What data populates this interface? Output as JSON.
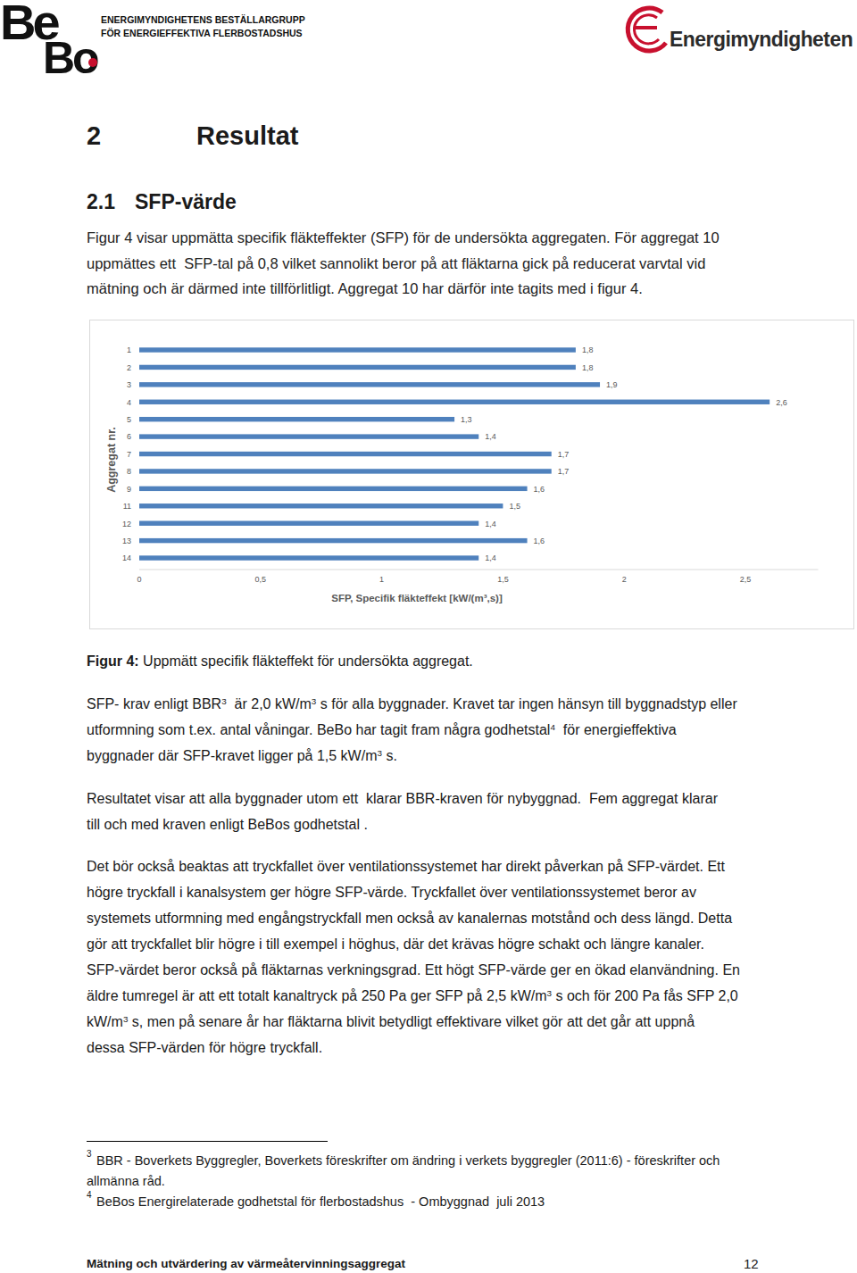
{
  "header": {
    "logo": [
      "Be",
      "Bo"
    ],
    "org_lines": [
      "ENERGIMYNDIGHETENS BESTÄLLARGRUPP",
      "FÖR ENERGIEFFEKTIVA FLERBOSTADSHUS"
    ],
    "agency": "Energimyndigheten"
  },
  "heading": {
    "number": "2",
    "title": "Resultat"
  },
  "subheading": {
    "number": "2.1",
    "title": "SFP-värde"
  },
  "intro": [
    "Figur 4 visar uppmätta specifik fläkteffekter (SFP) för de undersökta aggregaten. För aggregat 10",
    "uppmättes ett  SFP-tal på 0,8 vilket sannolikt beror på att fläktarna gick på reducerat varvtal vid",
    "mätning och är därmed inte tillförlitligt. Aggregat 10 har därför inte tagits med i figur 4."
  ],
  "chart_data": {
    "type": "bar",
    "orientation": "horizontal",
    "categories": [
      "1",
      "2",
      "3",
      "4",
      "5",
      "6",
      "7",
      "8",
      "9",
      "11",
      "12",
      "13",
      "14"
    ],
    "values": [
      1.8,
      1.8,
      1.9,
      2.6,
      1.3,
      1.4,
      1.7,
      1.7,
      1.6,
      1.5,
      1.4,
      1.6,
      1.4
    ],
    "value_labels": [
      "1,8",
      "1,8",
      "1,9",
      "2,6",
      "1,3",
      "1,4",
      "1,7",
      "1,7",
      "1,6",
      "1,5",
      "1,4",
      "1,6",
      "1,4"
    ],
    "data_labels": true,
    "xlabel": "SFP, Specifik fläkteffekt  [kW/(m³,s)]",
    "ylabel": "Aggregat nr.",
    "xlim": [
      0,
      2.8
    ],
    "xticks": [
      0,
      {
        "value": 0.5,
        "label": "0,5"
      },
      1,
      {
        "value": 1.5,
        "label": "1,5"
      },
      2,
      {
        "value": 2.5,
        "label": "2,5"
      }
    ],
    "color": "#4f81bd",
    "grid": false
  },
  "caption": {
    "label": "Figur 4:",
    "text": " Uppmätt specifik fläkteffekt för undersökta aggregat."
  },
  "paragraphs": [
    [
      [
        "SFP- krav enligt BBR",
        {
          "sup": "3"
        },
        "  är 2,0 kW/m",
        {
          "sup": "3"
        },
        " s för alla byggnader. Kravet tar ingen hänsyn till byggnadstyp eller"
      ],
      [
        "utformning som t.ex. antal våningar. BeBo har tagit fram några godhetstal",
        {
          "sup": "4"
        },
        "  för energieffektiva"
      ],
      [
        "byggnader där SFP-kravet ligger på 1,5 kW/m",
        {
          "sup": "3"
        },
        " s."
      ]
    ],
    [
      [
        "Resultatet visar att alla byggnader utom ett  klarar BBR-kraven för nybyggnad.  Fem aggregat klarar"
      ],
      [
        "till och med kraven enligt BeBos godhetstal ."
      ]
    ],
    [
      [
        "Det bör också beaktas att tryckfallet över ventilationssystemet har direkt påverkan på SFP-värdet. Ett"
      ],
      [
        "högre tryckfall i kanalsystem ger högre SFP-värde. Tryckfallet över ventilationssystemet beror av"
      ],
      [
        "systemets utformning med engångstryckfall men också av kanalernas motstånd och dess längd. Detta"
      ],
      [
        "gör att tryckfallet blir högre i till exempel i höghus, där det krävas högre schakt och längre kanaler."
      ],
      [
        "SFP-värdet beror också på fläktarnas verkningsgrad. Ett högt SFP-värde ger en ökad elanvändning. En"
      ],
      [
        "äldre tumregel är att ett totalt kanaltryck på 250 Pa ger SFP på 2,5 kW/m",
        {
          "sup": "3"
        },
        " s och för 200 Pa fås SFP 2,0"
      ],
      [
        "kW/m",
        {
          "sup": "3"
        },
        " s, men på senare år har fläktarna blivit betydligt effektivare vilket gör att det går att uppnå"
      ],
      [
        "dessa SFP-värden för högre tryckfall."
      ]
    ]
  ],
  "footnotes": [
    {
      "number": "3",
      "lines": [
        "BBR - Boverkets Byggregler, Boverkets föreskrifter om ändring i verkets byggregler (2011:6) - föreskrifter och",
        "allmänna råd."
      ]
    },
    {
      "number": "4",
      "lines": [
        "BeBos Energirelaterade godhetstal för flerbostadshus  - Ombyggnad  juli 2013"
      ]
    }
  ],
  "footer": {
    "title": "Mätning och utvärdering av värmeåtervinningsaggregat",
    "page": 12
  }
}
